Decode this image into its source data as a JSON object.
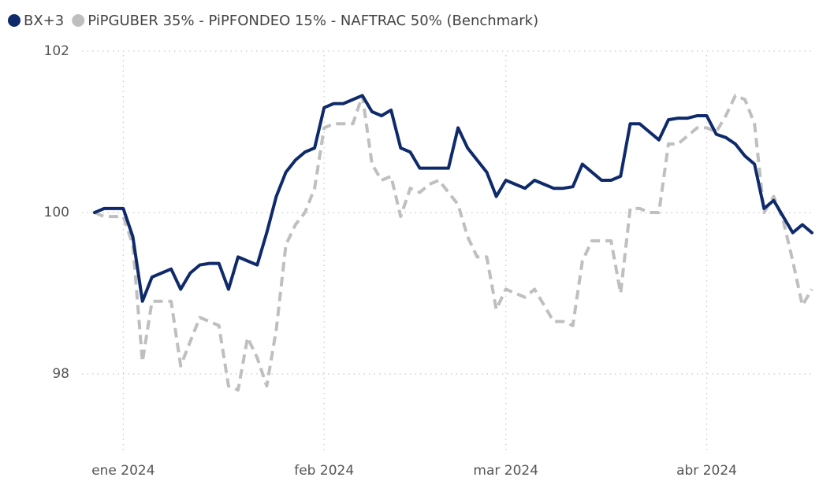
{
  "chart_data": {
    "type": "line",
    "categories": [
      null,
      null,
      null,
      "ene 2024",
      null,
      null,
      null,
      null,
      null,
      null,
      null,
      null,
      null,
      null,
      null,
      null,
      null,
      null,
      null,
      null,
      null,
      null,
      null,
      null,
      "feb 2024",
      null,
      null,
      null,
      null,
      null,
      null,
      null,
      null,
      null,
      null,
      null,
      null,
      null,
      null,
      null,
      null,
      null,
      null,
      "mar 2024",
      null,
      null,
      null,
      null,
      null,
      null,
      null,
      null,
      null,
      null,
      null,
      null,
      null,
      null,
      null,
      null,
      null,
      null,
      null,
      null,
      "abr 2024",
      null,
      null,
      null,
      null,
      null,
      null,
      null,
      null,
      null,
      null,
      null
    ],
    "series": [
      {
        "name": "BX+3",
        "color": "#0f2a6b",
        "dash": false,
        "values": [
          100.0,
          100.05,
          100.05,
          100.05,
          99.7,
          98.9,
          99.2,
          99.25,
          99.3,
          99.05,
          99.25,
          99.35,
          99.37,
          99.37,
          99.05,
          99.45,
          99.4,
          99.35,
          99.75,
          100.2,
          100.5,
          100.65,
          100.75,
          100.8,
          101.3,
          101.35,
          101.35,
          101.4,
          101.45,
          101.25,
          101.2,
          101.27,
          100.8,
          100.75,
          100.55,
          100.55,
          100.55,
          100.55,
          101.05,
          100.8,
          100.65,
          100.5,
          100.2,
          100.4,
          100.35,
          100.3,
          100.4,
          100.35,
          100.3,
          100.3,
          100.32,
          100.6,
          100.5,
          100.4,
          100.4,
          100.45,
          101.1,
          101.1,
          101.0,
          100.9,
          101.15,
          101.17,
          101.17,
          101.2,
          101.2,
          100.97,
          100.93,
          100.85,
          100.7,
          100.6,
          100.05,
          100.15,
          99.95,
          99.75,
          99.85,
          99.75
        ]
      },
      {
        "name": "PiPGUBER 35% - PiPFONDEO 15% - NAFTRAC 50% (Benchmark)",
        "color": "#bfbfbf",
        "dash": true,
        "values": [
          100.0,
          99.95,
          99.95,
          99.95,
          99.6,
          98.15,
          98.9,
          98.9,
          98.9,
          98.1,
          98.4,
          98.7,
          98.65,
          98.6,
          97.85,
          97.8,
          98.45,
          98.2,
          97.85,
          98.55,
          99.6,
          99.85,
          100.0,
          100.3,
          101.05,
          101.1,
          101.1,
          101.1,
          101.45,
          100.6,
          100.4,
          100.45,
          99.95,
          100.3,
          100.25,
          100.35,
          100.4,
          100.25,
          100.1,
          99.7,
          99.45,
          99.45,
          98.8,
          99.05,
          99.0,
          98.95,
          99.05,
          98.85,
          98.65,
          98.65,
          98.6,
          99.4,
          99.65,
          99.65,
          99.65,
          99.0,
          100.05,
          100.05,
          100.0,
          100.0,
          100.85,
          100.85,
          100.95,
          101.05,
          101.05,
          101.0,
          101.2,
          101.45,
          101.4,
          101.1,
          100.0,
          100.2,
          99.9,
          99.4,
          98.85,
          99.05
        ]
      }
    ],
    "ylim": [
      97.1,
      102.1
    ],
    "yticks": [
      98,
      100,
      102
    ],
    "grid": true
  }
}
